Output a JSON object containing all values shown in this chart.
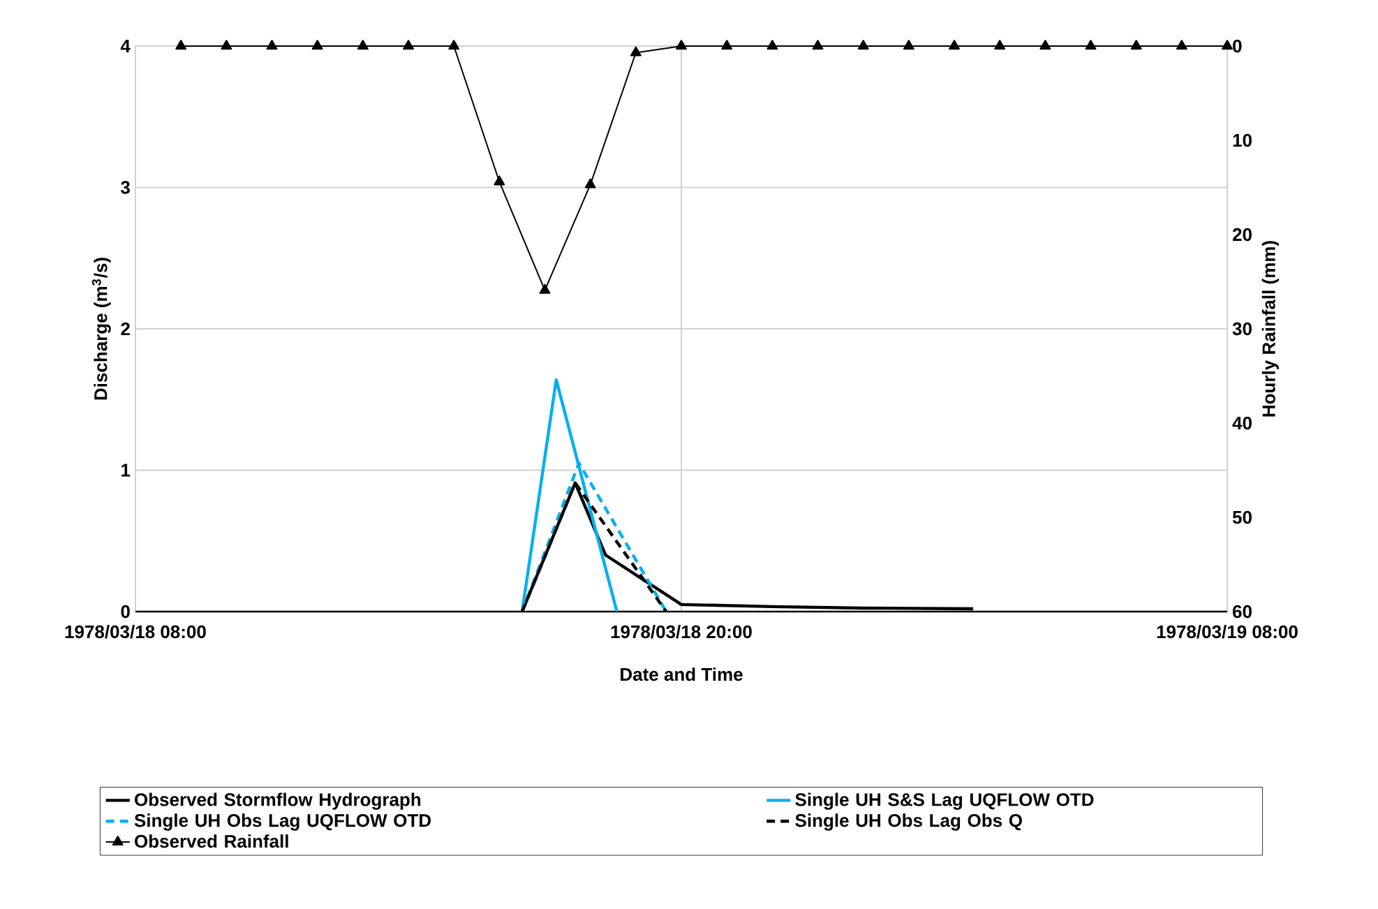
{
  "chart_data": {
    "type": "line",
    "xlabel": "Date and Time",
    "ylabel": "Discharge (m$^{3}$/s)",
    "y2label": "Hourly Rainfall (mm)",
    "xlim": [
      "1978-03-18T08:00",
      "1978-03-19T08:00"
    ],
    "xticks": [
      {
        "value": "1978-03-18T08:00",
        "label": "1978/03/18 08:00"
      },
      {
        "value": "1978-03-18T20:00",
        "label": "1978/03/18 20:00"
      },
      {
        "value": "1978-03-19T08:00",
        "label": "1978/03/19 08:00"
      }
    ],
    "ylim": [
      0,
      4
    ],
    "yticks": [
      0,
      1,
      2,
      3,
      4
    ],
    "y2lim": [
      60,
      0
    ],
    "y2ticks": [
      0,
      10,
      20,
      30,
      40,
      50,
      60
    ],
    "grid": true,
    "legend": "bottom",
    "series": [
      {
        "name": "Observed Stormflow Hydrograph",
        "color": "#000000",
        "line_style": "solid",
        "x": [
          "1978-03-18T16:30",
          "1978-03-18T17:40",
          "1978-03-18T18:20",
          "1978-03-18T20:00",
          "1978-03-18T22:00",
          "1978-03-19T00:00",
          "1978-03-19T02:25"
        ],
        "values": [
          0,
          0.91,
          0.4,
          0.05,
          0.035,
          0.025,
          0.02
        ]
      },
      {
        "name": "Single UH S&S Lag UQFLOW OTD",
        "color": "#00b0f0",
        "line_style": "solid",
        "x": [
          "1978-03-18T16:30",
          "1978-03-18T17:15",
          "1978-03-18T18:35"
        ],
        "values": [
          0,
          1.64,
          0
        ]
      },
      {
        "name": "Single UH Obs Lag UQFLOW OTD",
        "color": "#00b0f0",
        "line_style": "dashed",
        "x": [
          "1978-03-18T16:30",
          "1978-03-18T17:45",
          "1978-03-18T19:40"
        ],
        "values": [
          0,
          1.05,
          0
        ]
      },
      {
        "name": "Single UH Obs Lag Obs Q",
        "color": "#000000",
        "line_style": "dashed",
        "x": [
          "1978-03-18T16:30",
          "1978-03-18T17:40",
          "1978-03-18T19:40"
        ],
        "values": [
          0,
          0.91,
          0
        ]
      },
      {
        "name": "Observed Rainfall",
        "color": "#000000",
        "line_style": "solid",
        "marker": "triangle",
        "axis": "y2",
        "x": [
          "1978-03-18T09:00",
          "1978-03-18T10:00",
          "1978-03-18T11:00",
          "1978-03-18T12:00",
          "1978-03-18T13:00",
          "1978-03-18T14:00",
          "1978-03-18T15:00",
          "1978-03-18T16:00",
          "1978-03-18T17:00",
          "1978-03-18T18:00",
          "1978-03-18T19:00",
          "1978-03-18T20:00",
          "1978-03-18T21:00",
          "1978-03-18T22:00",
          "1978-03-18T23:00",
          "1978-03-19T00:00",
          "1978-03-19T01:00",
          "1978-03-19T02:00",
          "1978-03-19T03:00",
          "1978-03-19T04:00",
          "1978-03-19T05:00",
          "1978-03-19T06:00",
          "1978-03-19T07:00",
          "1978-03-19T08:00"
        ],
        "values": [
          0,
          0,
          0,
          0,
          0,
          0,
          0,
          14.4,
          25.9,
          14.7,
          0.7,
          0,
          0,
          0,
          0,
          0,
          0,
          0,
          0,
          0,
          0,
          0,
          0,
          0
        ]
      }
    ]
  }
}
